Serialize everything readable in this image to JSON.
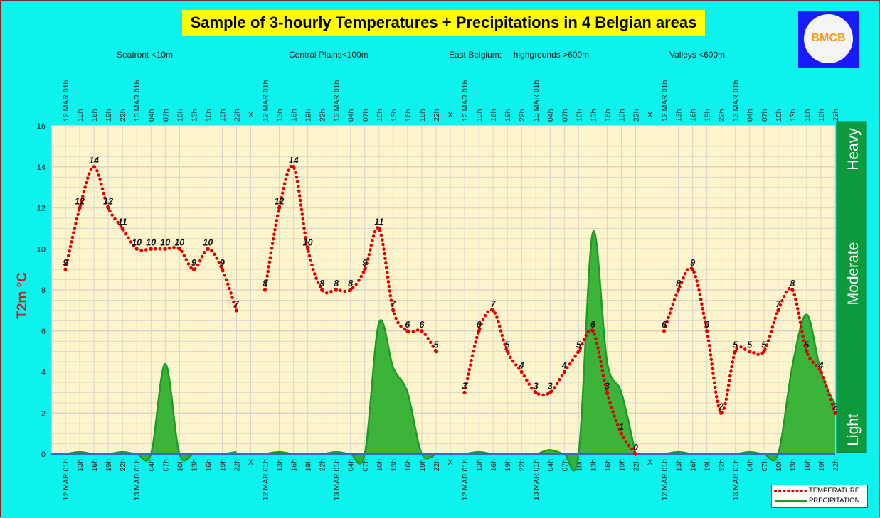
{
  "title": "Sample of 3-hourly Temperatures + Precipitations in 4 Belgian areas",
  "logo_text": "BMCB",
  "area_labels": [
    "Seafront <10m",
    "Central Plains<100m",
    "East Belgium:     highgrounds >600m",
    "Valleys <600m"
  ],
  "legend": {
    "temperature": "TEMPERATURE",
    "precipitation": "PRECIPITATION"
  },
  "colors": {
    "background": "#0ef2ee",
    "plot_bg": "#fff5cc",
    "temperature": "#e00000",
    "precipitation_fill": "#30b030",
    "precipitation_line": "#1e9a2a",
    "scale_bar": "#0c9a3c",
    "title_bg": "#ffff00"
  },
  "chart_data": {
    "type": "line",
    "title": "Sample of 3-hourly Temperatures + Precipitations in 4 Belgian areas",
    "ylabel": "T2m °C",
    "ylim": [
      0,
      16
    ],
    "y_ticks": [
      0,
      2,
      4,
      6,
      8,
      10,
      12,
      14,
      16
    ],
    "grid": true,
    "legend_position": "bottom-right",
    "precipitation_scale_labels": [
      "Light",
      "Moderate",
      "Heavy"
    ],
    "x_ticks": [
      "12 MAR 01h",
      "13h",
      "16h",
      "19h",
      "22h",
      "13 MAR 01h",
      "04h",
      "07h",
      "10h",
      "13h",
      "16h",
      "19h",
      "22h",
      "X",
      "12 MAR 01h",
      "13h",
      "16h",
      "19h",
      "22h",
      "13 MAR 01h",
      "04h",
      "07h",
      "10h",
      "13h",
      "16h",
      "19h",
      "22h",
      "X",
      "12 MAR 01h",
      "13h",
      "16h",
      "19h",
      "22h",
      "13 MAR 01h",
      "04h",
      "07h",
      "10h",
      "13h",
      "16h",
      "19h",
      "22h",
      "X",
      "12 MAR 01h",
      "13h",
      "16h",
      "19h",
      "22h",
      "13 MAR 01h",
      "04h",
      "07h",
      "10h",
      "13h",
      "16h",
      "19h",
      "22h"
    ],
    "series": [
      {
        "name": "TEMPERATURE",
        "values": [
          9,
          12,
          14,
          12,
          11,
          10,
          10,
          10,
          10,
          9,
          10,
          9,
          7,
          null,
          8,
          12,
          14,
          10,
          8,
          8,
          8,
          9,
          11,
          7,
          6,
          6,
          5,
          null,
          3,
          6,
          7,
          5,
          4,
          3,
          3,
          4,
          5,
          6,
          3,
          1,
          0,
          null,
          6,
          8,
          9,
          6,
          2,
          5,
          5,
          5,
          7,
          8,
          5,
          4,
          2
        ]
      },
      {
        "name": "PRECIPITATION",
        "values": [
          0,
          0.1,
          0,
          0,
          0.1,
          0,
          0,
          4.4,
          0,
          0,
          0,
          0,
          0.1,
          null,
          0,
          0.1,
          0,
          0,
          0,
          0.1,
          0,
          0,
          6.4,
          4.2,
          3,
          0,
          0,
          null,
          0,
          0.1,
          0,
          0,
          0,
          0,
          0.2,
          0,
          0,
          10.8,
          4.5,
          3,
          0,
          null,
          0,
          0.1,
          0,
          0,
          0,
          0,
          0.1,
          0,
          0,
          4.3,
          6.8,
          4,
          2.4
        ]
      }
    ]
  }
}
